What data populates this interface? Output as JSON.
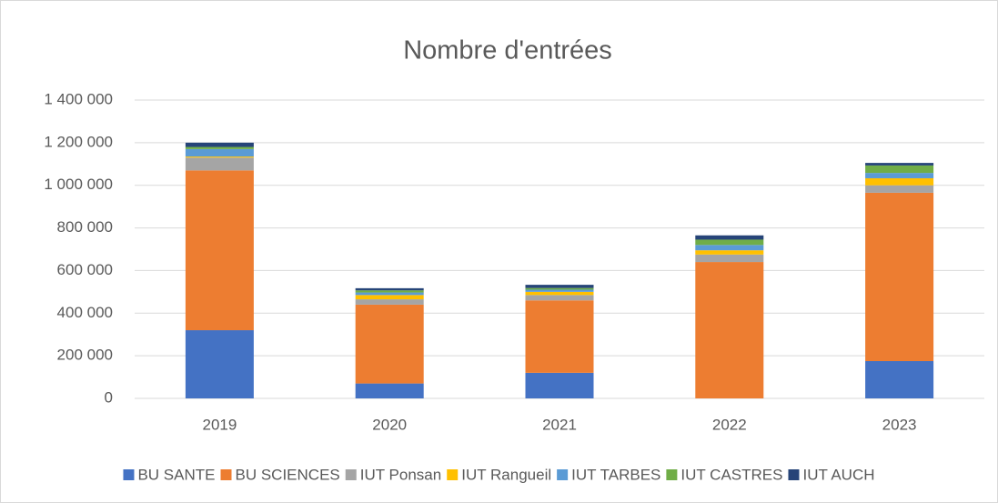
{
  "chart_data": {
    "type": "stacked_bar",
    "title": "Nombre d'entrées",
    "categories": [
      "2019",
      "2020",
      "2021",
      "2022",
      "2023"
    ],
    "series": [
      {
        "name": "BU SANTE",
        "color": "#4472c4",
        "values": [
          320000,
          70000,
          120000,
          0,
          175000
        ]
      },
      {
        "name": "BU SCIENCES",
        "color": "#ed7d31",
        "values": [
          750000,
          370000,
          340000,
          640000,
          790000
        ]
      },
      {
        "name": "IUT Ponsan",
        "color": "#a5a5a5",
        "values": [
          60000,
          25000,
          25000,
          35000,
          35000
        ]
      },
      {
        "name": "IUT Rangueil",
        "color": "#ffc000",
        "values": [
          5000,
          20000,
          15000,
          20000,
          33000
        ]
      },
      {
        "name": "IUT TARBES",
        "color": "#5b9bd5",
        "values": [
          35000,
          12000,
          10000,
          25000,
          25000
        ]
      },
      {
        "name": "IUT CASTRES",
        "color": "#70ad47",
        "values": [
          10000,
          10000,
          8000,
          25000,
          35000
        ]
      },
      {
        "name": "IUT AUCH",
        "color": "#264478",
        "values": [
          20000,
          10000,
          15000,
          20000,
          12000
        ]
      }
    ],
    "ylim": [
      0,
      1400000
    ],
    "yticks": [
      0,
      {
        "value": 200000,
        "label": "200 000"
      },
      {
        "value": 400000,
        "label": "400 000"
      },
      {
        "value": 600000,
        "label": "600 000"
      },
      {
        "value": 800000,
        "label": "800 000"
      },
      {
        "value": 1000000,
        "label": "1 000 000"
      },
      {
        "value": 1200000,
        "label": "1 200 000"
      },
      {
        "value": 1400000,
        "label": "1 400 000"
      }
    ],
    "grid": true,
    "legend": "bottom"
  }
}
